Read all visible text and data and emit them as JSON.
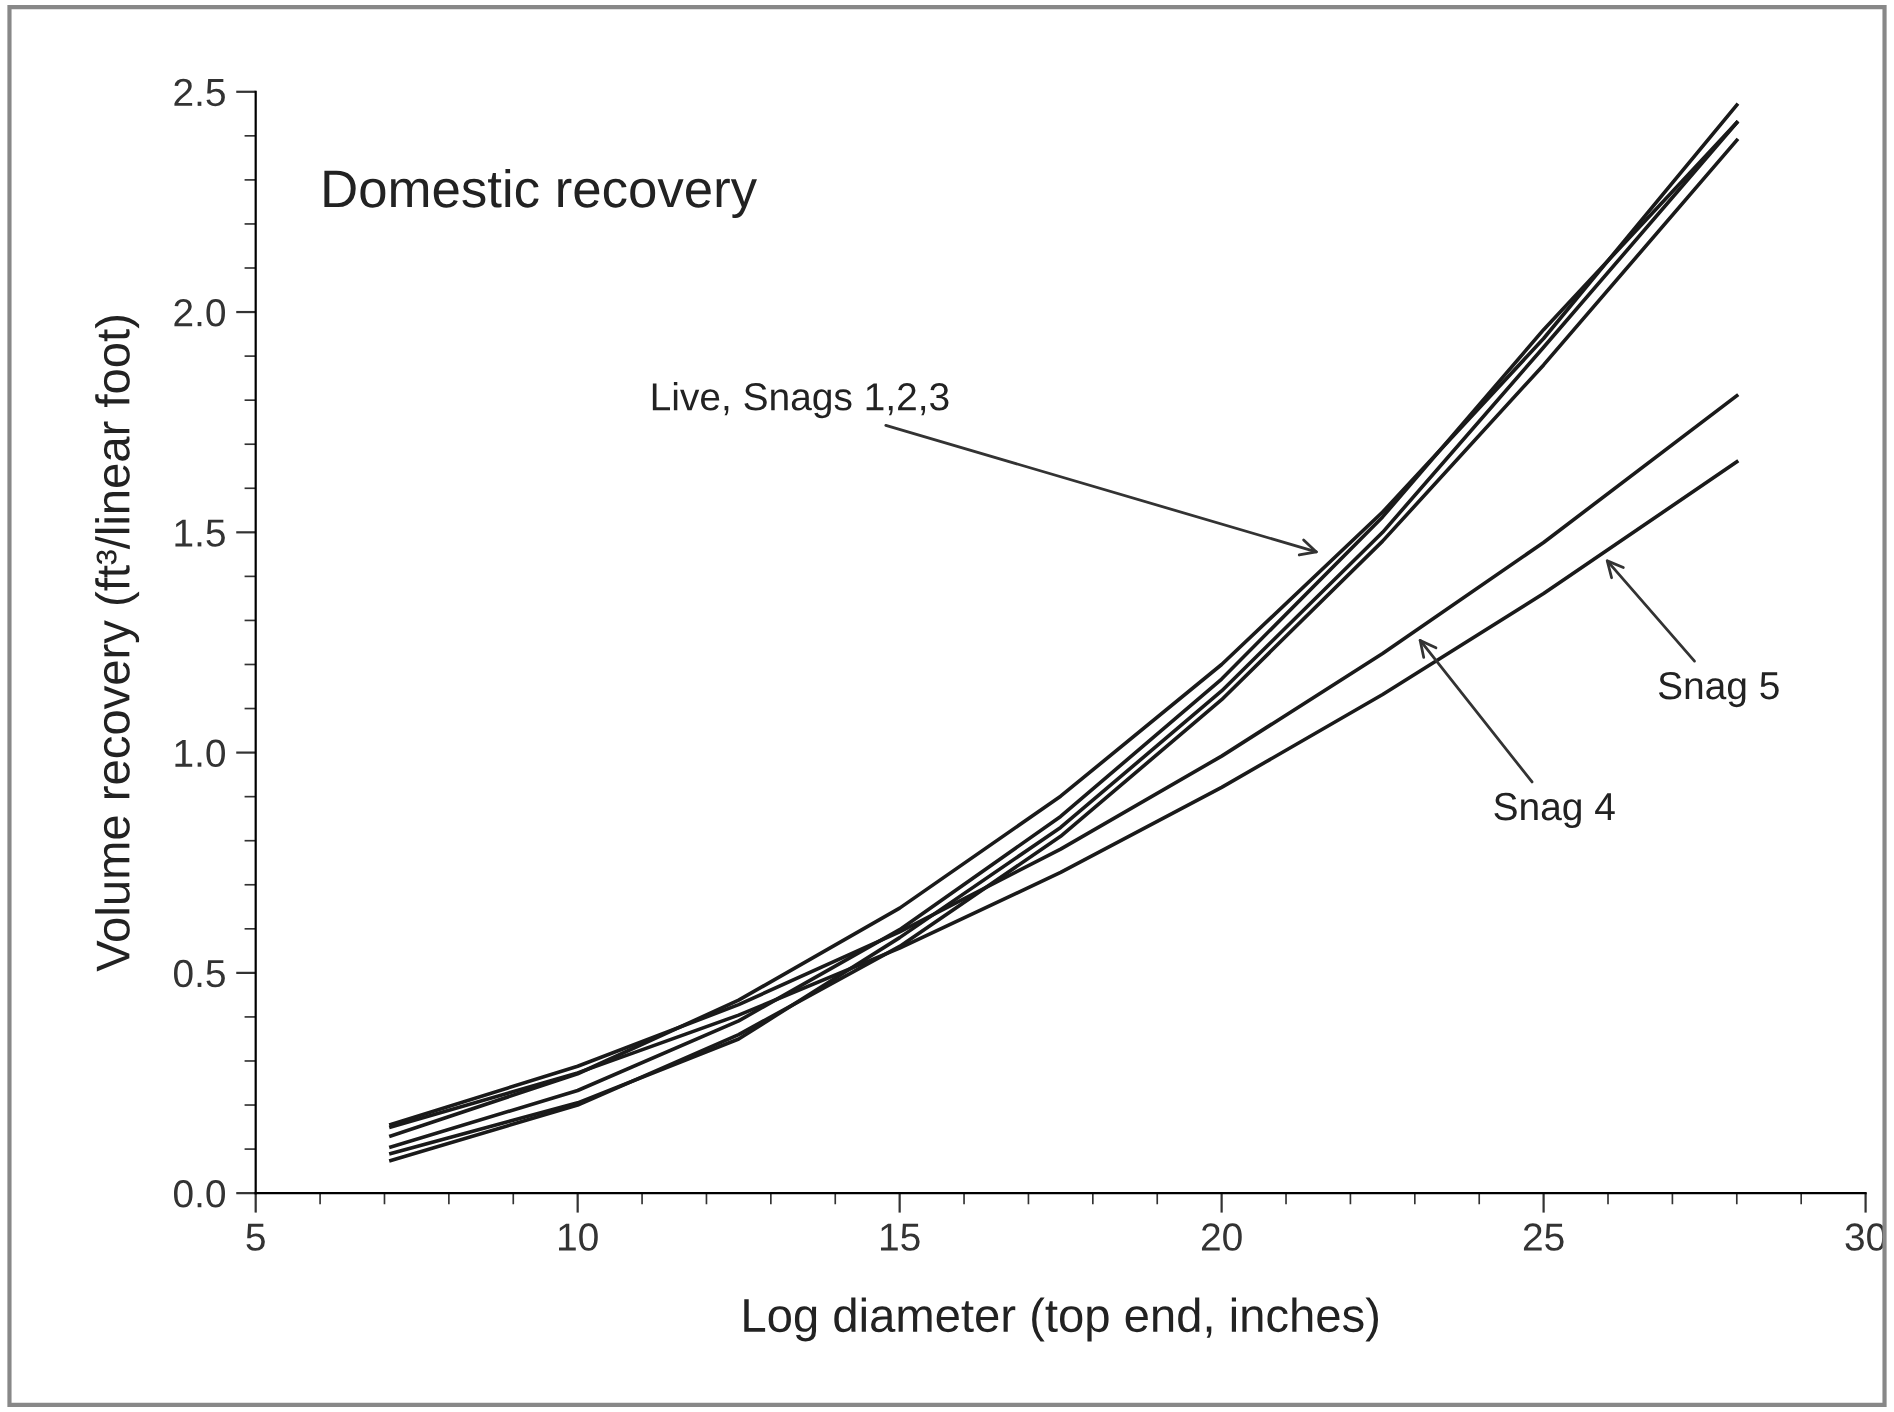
{
  "chart_data": {
    "type": "line",
    "xlabel": "Log diameter (top end, inches)",
    "ylabel": "Volume recovery (ft³/linear foot)",
    "x": [
      7.1,
      10,
      12.5,
      15,
      17.5,
      20,
      22.5,
      25,
      28
    ],
    "series": [
      {
        "color": "#1a1a1a",
        "values": [
          0.13,
          0.271,
          0.438,
          0.647,
          0.901,
          1.2,
          1.546,
          1.94,
          2.47
        ]
      },
      {
        "color": "#1a1a1a",
        "values": [
          0.105,
          0.233,
          0.391,
          0.598,
          0.855,
          1.167,
          1.535,
          1.96,
          2.43
        ]
      },
      {
        "color": "#1a1a1a",
        "values": [
          0.09,
          0.205,
          0.35,
          0.58,
          0.83,
          1.14,
          1.5,
          1.92,
          2.43
        ]
      },
      {
        "color": "#1a1a1a",
        "values": [
          0.074,
          0.2,
          0.36,
          0.56,
          0.81,
          1.12,
          1.48,
          1.88,
          2.39
        ]
      },
      {
        "color": "#1a1a1a",
        "values": [
          0.156,
          0.288,
          0.428,
          0.593,
          0.781,
          0.992,
          1.225,
          1.477,
          1.81
        ]
      },
      {
        "color": "#1a1a1a",
        "values": [
          0.15,
          0.273,
          0.404,
          0.556,
          0.728,
          0.921,
          1.132,
          1.361,
          1.66
        ]
      }
    ],
    "xlim": [
      5,
      30
    ],
    "xticks": [
      5,
      10,
      15,
      20,
      25,
      30
    ],
    "ylim": [
      0,
      2.5
    ],
    "yticks": [
      {
        "value": 0,
        "label": "0.0"
      },
      {
        "value": 0.5,
        "label": "0.5"
      },
      {
        "value": 1,
        "label": "1.0"
      },
      {
        "value": 1.5,
        "label": "1.5"
      },
      {
        "value": 2,
        "label": "2.0"
      },
      {
        "value": 2.5,
        "label": "2.5"
      }
    ],
    "annotations": [
      "Domestic recovery",
      {
        "text": "Live, Snags 1,2,3",
        "x": 21.6,
        "y": 1.45
      },
      {
        "text": "Snag 4",
        "x": 23.0,
        "y": 1.27
      },
      {
        "text": "Snag 5",
        "x": 25.9,
        "y": 1.45
      }
    ],
    "grid": false,
    "legend": false,
    "marker": "none",
    "line_style": "solid"
  }
}
